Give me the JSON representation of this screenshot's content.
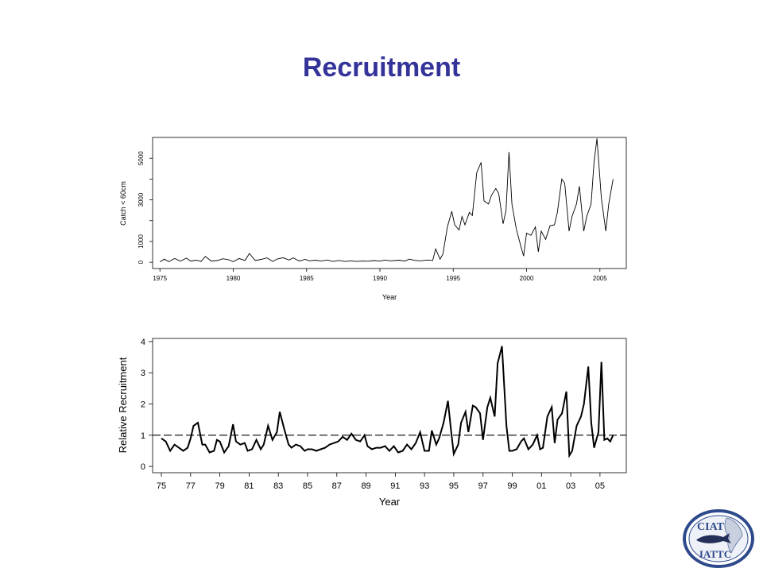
{
  "slide": {
    "title": "Recruitment",
    "title_color": "#333399"
  },
  "logo": {
    "top_text": "CIAT",
    "bottom_text": "IATTC",
    "ring_color": "#2e4a8c",
    "fill_color": "#ffffff"
  },
  "chart_data": [
    {
      "type": "line",
      "title": "",
      "xlabel": "Year",
      "ylabel": "Catch < 60cm",
      "xlim": [
        1974.5,
        2006.8
      ],
      "ylim": [
        -300,
        6000
      ],
      "xticks": [
        1975,
        1980,
        1985,
        1990,
        1995,
        2000,
        2005
      ],
      "yticks": [
        0,
        1000,
        3000,
        5000
      ],
      "yminor_ticks": [
        2000,
        4000
      ],
      "grid": false,
      "series": [
        {
          "x": [
            1975.0,
            1975.3,
            1975.6,
            1976.0,
            1976.4,
            1976.8,
            1977.1,
            1977.5,
            1977.8,
            1978.1,
            1978.5,
            1978.9,
            1979.3,
            1979.7,
            1980.0,
            1980.4,
            1980.8,
            1981.1,
            1981.5,
            1981.9,
            1982.3,
            1982.7,
            1983.0,
            1983.4,
            1983.8,
            1984.1,
            1984.5,
            1984.9,
            1985.2,
            1985.6,
            1986.0,
            1986.4,
            1986.8,
            1987.2,
            1987.6,
            1988.0,
            1988.4,
            1988.8,
            1989.2,
            1989.6,
            1990.0,
            1990.4,
            1990.7,
            1991.0,
            1991.3,
            1991.7,
            1992.0,
            1992.4,
            1992.8,
            1993.2,
            1993.6,
            1993.8,
            1994.1,
            1994.3,
            1994.6,
            1994.9,
            1995.1,
            1995.4,
            1995.6,
            1995.8,
            1996.1,
            1996.3,
            1996.6,
            1996.9,
            1997.1,
            1997.4,
            1997.6,
            1997.9,
            1998.1,
            1998.4,
            1998.6,
            1998.8,
            1999.0,
            1999.3,
            1999.6,
            1999.8,
            2000.0,
            2000.3,
            2000.6,
            2000.8,
            2001.0,
            2001.3,
            2001.6,
            2001.9,
            2002.1,
            2002.4,
            2002.6,
            2002.9,
            2003.1,
            2003.4,
            2003.6,
            2003.9,
            2004.1,
            2004.4,
            2004.6,
            2004.8,
            2005.1,
            2005.4,
            2005.6,
            2005.9
          ],
          "y": [
            20,
            150,
            30,
            180,
            50,
            200,
            60,
            100,
            40,
            280,
            60,
            80,
            170,
            120,
            30,
            180,
            90,
            420,
            80,
            140,
            210,
            40,
            160,
            220,
            110,
            210,
            60,
            140,
            70,
            100,
            60,
            110,
            40,
            90,
            40,
            70,
            40,
            60,
            50,
            80,
            60,
            110,
            70,
            80,
            100,
            60,
            150,
            90,
            70,
            110,
            90,
            640,
            150,
            400,
            1700,
            2450,
            1800,
            1550,
            2200,
            1800,
            2400,
            2250,
            4300,
            4800,
            2950,
            2800,
            3200,
            3550,
            3300,
            1850,
            2500,
            5300,
            2800,
            1600,
            800,
            300,
            1400,
            1300,
            1700,
            500,
            1500,
            1100,
            1750,
            1800,
            2400,
            4000,
            3800,
            1500,
            2200,
            2800,
            3650,
            1500,
            2200,
            2800,
            4800,
            5950,
            3100,
            1500,
            2800,
            4000
          ]
        }
      ]
    },
    {
      "type": "line",
      "title": "",
      "xlabel": "Year",
      "ylabel": "Relative Recruitment",
      "xlim": [
        1974.4,
        2006.8
      ],
      "ylim": [
        -0.2,
        4.1
      ],
      "xticks": [
        1975,
        1977,
        1979,
        1981,
        1983,
        1985,
        1987,
        1989,
        1991,
        1993,
        1995,
        1997,
        1999,
        2001,
        2003,
        2005
      ],
      "xtick_labels": [
        "75",
        "77",
        "79",
        "81",
        "83",
        "85",
        "87",
        "89",
        "91",
        "93",
        "95",
        "97",
        "99",
        "01",
        "03",
        "05"
      ],
      "yticks": [
        0,
        1,
        2,
        3,
        4
      ],
      "reference_line": 1,
      "grid": false,
      "series": [
        {
          "x": [
            1975.0,
            1975.3,
            1975.6,
            1975.9,
            1976.2,
            1976.5,
            1976.8,
            1977.0,
            1977.2,
            1977.5,
            1977.8,
            1978.0,
            1978.3,
            1978.6,
            1978.8,
            1979.0,
            1979.3,
            1979.6,
            1979.9,
            1980.1,
            1980.4,
            1980.7,
            1980.9,
            1981.2,
            1981.5,
            1981.8,
            1982.0,
            1982.3,
            1982.6,
            1982.9,
            1983.1,
            1983.4,
            1983.7,
            1983.9,
            1984.2,
            1984.5,
            1984.8,
            1985.0,
            1985.3,
            1985.6,
            1985.9,
            1986.2,
            1986.5,
            1986.8,
            1987.1,
            1987.4,
            1987.7,
            1988.0,
            1988.3,
            1988.6,
            1988.9,
            1989.1,
            1989.4,
            1989.7,
            1990.0,
            1990.3,
            1990.6,
            1990.9,
            1991.2,
            1991.5,
            1991.8,
            1992.1,
            1992.4,
            1992.7,
            1993.0,
            1993.3,
            1993.5,
            1993.8,
            1994.0,
            1994.3,
            1994.6,
            1994.8,
            1995.0,
            1995.3,
            1995.5,
            1995.8,
            1996.0,
            1996.3,
            1996.5,
            1996.8,
            1997.0,
            1997.3,
            1997.5,
            1997.8,
            1998.0,
            1998.3,
            1998.6,
            1998.8,
            1999.0,
            1999.3,
            1999.6,
            1999.8,
            2000.1,
            2000.4,
            2000.7,
            2000.9,
            2001.1,
            2001.4,
            2001.7,
            2001.9,
            2002.1,
            2002.4,
            2002.7,
            2002.9,
            2003.1,
            2003.4,
            2003.7,
            2003.9,
            2004.2,
            2004.4,
            2004.6,
            2004.9,
            2005.1,
            2005.3,
            2005.5,
            2005.7,
            2005.9
          ],
          "y": [
            0.9,
            0.8,
            0.5,
            0.7,
            0.6,
            0.5,
            0.6,
            0.9,
            1.3,
            1.4,
            0.7,
            0.7,
            0.45,
            0.5,
            0.85,
            0.8,
            0.45,
            0.65,
            1.35,
            0.8,
            0.7,
            0.75,
            0.5,
            0.55,
            0.85,
            0.55,
            0.7,
            1.3,
            0.85,
            1.1,
            1.75,
            1.2,
            0.7,
            0.6,
            0.7,
            0.65,
            0.5,
            0.55,
            0.55,
            0.5,
            0.55,
            0.6,
            0.7,
            0.75,
            0.8,
            0.95,
            0.85,
            1.05,
            0.85,
            0.8,
            1.0,
            0.65,
            0.55,
            0.6,
            0.6,
            0.65,
            0.5,
            0.65,
            0.45,
            0.5,
            0.7,
            0.55,
            0.75,
            1.1,
            0.5,
            0.5,
            1.15,
            0.7,
            0.9,
            1.4,
            2.1,
            1.2,
            0.4,
            0.7,
            1.4,
            1.75,
            1.1,
            1.95,
            1.9,
            1.7,
            0.85,
            1.9,
            2.2,
            1.6,
            3.3,
            3.85,
            1.3,
            0.5,
            0.5,
            0.55,
            0.8,
            0.9,
            0.55,
            0.7,
            1.0,
            0.55,
            0.6,
            1.6,
            1.9,
            0.75,
            1.5,
            1.7,
            2.4,
            0.35,
            0.5,
            1.3,
            1.6,
            2.0,
            3.2,
            1.4,
            0.6,
            1.1,
            3.35,
            0.85,
            0.9,
            0.8,
            1.0
          ]
        }
      ]
    }
  ]
}
